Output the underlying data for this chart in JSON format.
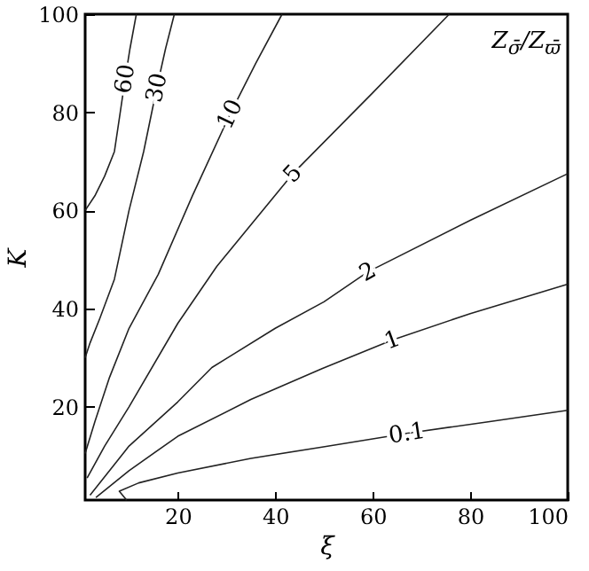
{
  "chart_data": {
    "type": "line",
    "xlabel": "ξ",
    "ylabel": "K",
    "xlim": [
      1,
      100
    ],
    "ylim": [
      1,
      100
    ],
    "xticks": [
      20,
      40,
      60,
      80,
      100
    ],
    "yticks": [
      20,
      40,
      60,
      80,
      100
    ],
    "grid": false,
    "legend": false,
    "marker": "none",
    "line_style": "solid",
    "annotations": [
      "Z$_{σ̄}$/Z$_{ϖ̄}$"
    ],
    "series": [
      {
        "name": "60",
        "color": "#222222",
        "x": [
          1,
          3,
          5,
          7,
          8.2,
          9.2,
          10.2,
          11.5
        ],
        "values": [
          60,
          63,
          67,
          72,
          80,
          86.8,
          93,
          100
        ]
      },
      {
        "name": "30",
        "color": "#222222",
        "x": [
          1,
          2,
          4,
          7,
          10,
          13,
          15.7,
          17.5,
          19.3
        ],
        "values": [
          30,
          33,
          38,
          46,
          60,
          72,
          85,
          93,
          100
        ]
      },
      {
        "name": "10",
        "color": "#222222",
        "x": [
          1,
          3,
          6,
          10,
          16,
          23,
          30.7,
          36,
          41.4
        ],
        "values": [
          10.5,
          17,
          26,
          36,
          47,
          63,
          79.6,
          90,
          100
        ]
      },
      {
        "name": "5",
        "color": "#222222",
        "x": [
          1.4,
          5,
          10,
          20,
          28,
          43.6,
          60,
          75.7
        ],
        "values": [
          5.5,
          12,
          20,
          37,
          48.6,
          67.5,
          84,
          100
        ]
      },
      {
        "name": "2",
        "color": "#222222",
        "x": [
          2,
          10,
          20,
          27,
          40,
          50,
          59,
          80,
          100
        ],
        "values": [
          2,
          12,
          21,
          28,
          36,
          41.4,
          47.5,
          58,
          67.5
        ]
      },
      {
        "name": "1",
        "color": "#222222",
        "x": [
          3.2,
          10,
          20,
          35,
          49.6,
          64,
          80,
          100
        ],
        "values": [
          1.5,
          7,
          14,
          21.5,
          27.8,
          33.6,
          39,
          45
        ]
      },
      {
        "name": "0.1",
        "color": "#222222",
        "x": [
          9.5,
          8,
          12,
          20,
          35,
          49.6,
          67,
          84,
          100
        ],
        "values": [
          1,
          2.8,
          4.5,
          6.5,
          9.5,
          11.8,
          14.6,
          17,
          19.3
        ]
      }
    ]
  }
}
